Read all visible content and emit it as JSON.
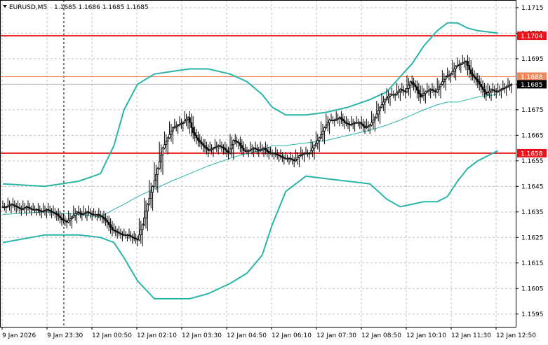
{
  "header": {
    "symbol_timeframe": "EURUSD,M5",
    "ohlc": "1.1685 1.1686 1.1685 1.1685"
  },
  "colors": {
    "background": "#ffffff",
    "grid": "#c0c0c0",
    "axis": "#000000",
    "candle": "#000000",
    "bollinger": "#2bb5a8",
    "resistance_line": "#e8141b",
    "support_line": "#e8141b",
    "ask_line": "#f08a5d",
    "bid_line": "#b9b9b9"
  },
  "chart_data": {
    "type": "candlestick",
    "title": "",
    "ylim": [
      1.159,
      1.1718
    ],
    "y_ticks": [
      "1.1715",
      "1.1705",
      "1.1695",
      "1.1685",
      "1.1675",
      "1.1665",
      "1.1655",
      "1.1645",
      "1.1635",
      "1.1625",
      "1.1615",
      "1.1605",
      "1.1595"
    ],
    "x_ticks": [
      "9 Jan 2026",
      "9 Jan 23:30",
      "12 Jan 00:50",
      "12 Jan 02:10",
      "12 Jan 03:30",
      "12 Jan 04:50",
      "12 Jan 06:10",
      "12 Jan 07:30",
      "12 Jan 08:50",
      "12 Jan 10:10",
      "12 Jan 11:30",
      "12 Jan 12:50"
    ],
    "price_tags": [
      {
        "label": "1.1704",
        "value": 1.1704,
        "kind": "resistance"
      },
      {
        "label": "1.1688",
        "value": 1.1688,
        "kind": "ask"
      },
      {
        "label": "1.1685",
        "value": 1.1685,
        "kind": "bid"
      },
      {
        "label": "1.1658",
        "value": 1.1658,
        "kind": "support"
      }
    ],
    "horizontal_lines": [
      {
        "value": 1.1704,
        "kind": "resistance"
      },
      {
        "value": 1.1658,
        "kind": "support"
      },
      {
        "value": 1.1688,
        "kind": "ask"
      },
      {
        "value": 1.1685,
        "kind": "bid"
      }
    ],
    "close_series": [
      1.1637,
      1.1638,
      1.1637,
      1.1636,
      1.1637,
      1.1636,
      1.1636,
      1.1635,
      1.1636,
      1.1635,
      1.1634,
      1.1632,
      1.1631,
      1.1633,
      1.1635,
      1.1634,
      1.1635,
      1.1634,
      1.1634,
      1.1633,
      1.1631,
      1.1628,
      1.1627,
      1.1626,
      1.1626,
      1.1625,
      1.1624,
      1.163,
      1.1638,
      1.1645,
      1.1652,
      1.166,
      1.1664,
      1.1668,
      1.1669,
      1.167,
      1.1672,
      1.1666,
      1.1663,
      1.1661,
      1.1659,
      1.166,
      1.1661,
      1.166,
      1.1658,
      1.1663,
      1.1662,
      1.1659,
      1.1659,
      1.166,
      1.1659,
      1.166,
      1.1658,
      1.1658,
      1.1657,
      1.1656,
      1.1656,
      1.1655,
      1.1657,
      1.1658,
      1.1658,
      1.1661,
      1.1664,
      1.1668,
      1.1671,
      1.1671,
      1.1672,
      1.167,
      1.1669,
      1.167,
      1.167,
      1.1668,
      1.1669,
      1.1672,
      1.1676,
      1.1679,
      1.1681,
      1.1681,
      1.1683,
      1.1682,
      1.1686,
      1.1684,
      1.168,
      1.1682,
      1.1683,
      1.1682,
      1.1685,
      1.1688,
      1.1689,
      1.1692,
      1.1693,
      1.1694,
      1.1689,
      1.1687,
      1.1684,
      1.1681,
      1.1683,
      1.1682,
      1.1683,
      1.1684,
      1.1685
    ],
    "bb_upper": [
      [
        0,
        1.1646
      ],
      [
        25,
        1.1645
      ],
      [
        45,
        1.1647
      ],
      [
        58,
        1.165
      ],
      [
        66,
        1.1661
      ],
      [
        72,
        1.1675
      ],
      [
        80,
        1.1685
      ],
      [
        90,
        1.1689
      ],
      [
        100,
        1.169
      ],
      [
        111,
        1.1691
      ],
      [
        122,
        1.1691
      ],
      [
        135,
        1.1689
      ],
      [
        145,
        1.1686
      ],
      [
        154,
        1.1681
      ],
      [
        160,
        1.1676
      ],
      [
        168,
        1.1673
      ],
      [
        180,
        1.1673
      ],
      [
        192,
        1.1674
      ],
      [
        205,
        1.1676
      ],
      [
        218,
        1.1679
      ],
      [
        228,
        1.1682
      ],
      [
        236,
        1.1688
      ],
      [
        243,
        1.1693
      ],
      [
        250,
        1.17
      ],
      [
        258,
        1.1706
      ],
      [
        264,
        1.1709
      ],
      [
        270,
        1.1709
      ],
      [
        276,
        1.1707
      ],
      [
        282,
        1.1706
      ],
      [
        294,
        1.1705
      ]
    ],
    "bb_middle": [
      [
        0,
        1.1634
      ],
      [
        25,
        1.1635
      ],
      [
        45,
        1.1634
      ],
      [
        58,
        1.1633
      ],
      [
        66,
        1.1636
      ],
      [
        72,
        1.1638
      ],
      [
        80,
        1.1641
      ],
      [
        90,
        1.1644
      ],
      [
        100,
        1.1647
      ],
      [
        111,
        1.165
      ],
      [
        122,
        1.1653
      ],
      [
        135,
        1.1656
      ],
      [
        145,
        1.1658
      ],
      [
        154,
        1.1659
      ],
      [
        160,
        1.1661
      ],
      [
        168,
        1.1661
      ],
      [
        180,
        1.1662
      ],
      [
        192,
        1.1663
      ],
      [
        205,
        1.1665
      ],
      [
        218,
        1.1667
      ],
      [
        228,
        1.1669
      ],
      [
        236,
        1.1671
      ],
      [
        243,
        1.1673
      ],
      [
        250,
        1.1675
      ],
      [
        258,
        1.1677
      ],
      [
        264,
        1.1678
      ],
      [
        270,
        1.1678
      ],
      [
        276,
        1.1679
      ],
      [
        282,
        1.168
      ],
      [
        294,
        1.1681
      ]
    ],
    "bb_lower": [
      [
        0,
        1.1623
      ],
      [
        25,
        1.1626
      ],
      [
        45,
        1.1626
      ],
      [
        58,
        1.1625
      ],
      [
        66,
        1.1623
      ],
      [
        72,
        1.1617
      ],
      [
        80,
        1.1608
      ],
      [
        90,
        1.1601
      ],
      [
        100,
        1.1601
      ],
      [
        111,
        1.1601
      ],
      [
        122,
        1.1603
      ],
      [
        135,
        1.1607
      ],
      [
        145,
        1.1611
      ],
      [
        154,
        1.1618
      ],
      [
        160,
        1.163
      ],
      [
        168,
        1.1643
      ],
      [
        180,
        1.1649
      ],
      [
        192,
        1.1648
      ],
      [
        205,
        1.1647
      ],
      [
        218,
        1.1646
      ],
      [
        228,
        1.164
      ],
      [
        236,
        1.1637
      ],
      [
        243,
        1.1638
      ],
      [
        250,
        1.1639
      ],
      [
        258,
        1.1639
      ],
      [
        264,
        1.1641
      ],
      [
        270,
        1.1647
      ],
      [
        276,
        1.1652
      ],
      [
        282,
        1.1655
      ],
      [
        294,
        1.1659
      ]
    ]
  }
}
